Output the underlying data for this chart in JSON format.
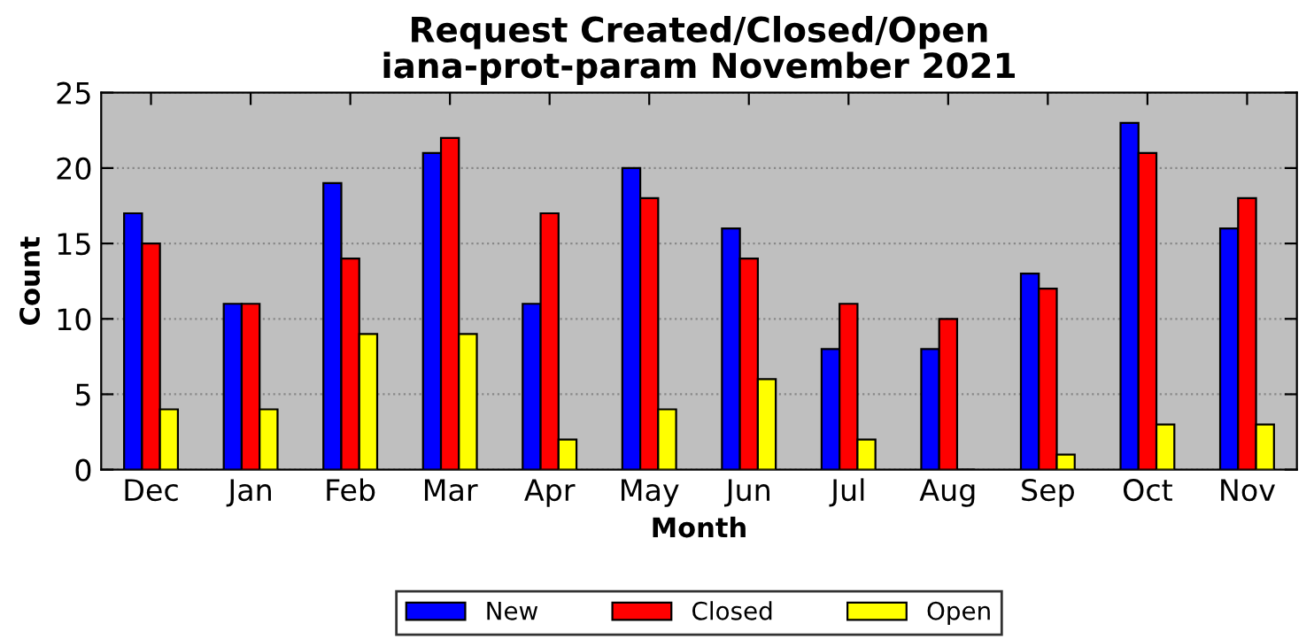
{
  "chart_data": {
    "type": "bar",
    "title": "Request Created/Closed/Open\niana-prot-param November 2021",
    "xlabel": "Month",
    "ylabel": "Count",
    "categories": [
      "Dec",
      "Jan",
      "Feb",
      "Mar",
      "Apr",
      "May",
      "Jun",
      "Jul",
      "Aug",
      "Sep",
      "Oct",
      "Nov"
    ],
    "series": [
      {
        "name": "New",
        "color": "#0000ff",
        "values": [
          17,
          11,
          19,
          21,
          11,
          20,
          16,
          8,
          8,
          13,
          23,
          16
        ]
      },
      {
        "name": "Closed",
        "color": "#ff0000",
        "values": [
          15,
          11,
          14,
          22,
          17,
          18,
          14,
          11,
          10,
          12,
          21,
          18
        ]
      },
      {
        "name": "Open",
        "color": "#ffff00",
        "values": [
          4,
          4,
          9,
          9,
          2,
          4,
          6,
          2,
          0,
          1,
          3,
          3
        ]
      }
    ],
    "ylim": [
      0,
      25
    ],
    "yticks": [
      0,
      5,
      10,
      15,
      20,
      25
    ],
    "grid": "y",
    "legend": "bottom"
  }
}
